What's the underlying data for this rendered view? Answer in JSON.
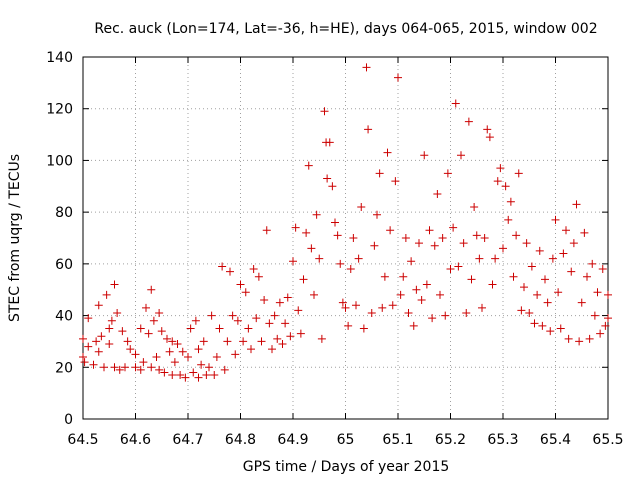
{
  "chart_data": {
    "type": "scatter",
    "title": "Rec. auck (Lon=174, Lat=-36, h=HE), days 064-065, 2015, window 002",
    "xlabel": "GPS time / Days of year 2015",
    "ylabel": "STEC from uqrg / TECUs",
    "xlim": [
      64.5,
      65.5
    ],
    "ylim": [
      0,
      140
    ],
    "xticks": [
      "64.5",
      "64.6",
      "64.7",
      "64.8",
      "64.9",
      "65",
      "65.1",
      "65.2",
      "65.3",
      "65.4",
      "65.5"
    ],
    "yticks": [
      "0",
      "20",
      "40",
      "60",
      "80",
      "100",
      "120",
      "140"
    ],
    "grid": true,
    "marker": "+",
    "color": "#cc0000",
    "series": [
      {
        "name": "STEC",
        "points": [
          [
            64.5,
            31
          ],
          [
            64.5,
            24
          ],
          [
            64.503,
            22
          ],
          [
            64.51,
            28
          ],
          [
            64.51,
            39
          ],
          [
            64.52,
            21
          ],
          [
            64.525,
            30
          ],
          [
            64.53,
            26
          ],
          [
            64.53,
            44
          ],
          [
            64.535,
            32
          ],
          [
            64.54,
            20
          ],
          [
            64.545,
            48
          ],
          [
            64.55,
            29
          ],
          [
            64.55,
            35
          ],
          [
            64.555,
            38
          ],
          [
            64.56,
            52
          ],
          [
            64.56,
            20
          ],
          [
            64.565,
            41
          ],
          [
            64.57,
            19
          ],
          [
            64.575,
            34
          ],
          [
            64.58,
            20
          ],
          [
            64.585,
            30
          ],
          [
            64.59,
            27
          ],
          [
            64.6,
            20
          ],
          [
            64.6,
            25
          ],
          [
            64.61,
            19
          ],
          [
            64.61,
            35
          ],
          [
            64.615,
            22
          ],
          [
            64.62,
            43
          ],
          [
            64.625,
            33
          ],
          [
            64.63,
            50
          ],
          [
            64.63,
            20
          ],
          [
            64.635,
            38
          ],
          [
            64.64,
            24
          ],
          [
            64.645,
            19
          ],
          [
            64.645,
            41
          ],
          [
            64.65,
            34
          ],
          [
            64.655,
            18
          ],
          [
            64.66,
            31
          ],
          [
            64.665,
            26
          ],
          [
            64.67,
            17
          ],
          [
            64.67,
            30
          ],
          [
            64.675,
            22
          ],
          [
            64.68,
            29
          ],
          [
            64.685,
            17
          ],
          [
            64.69,
            26
          ],
          [
            64.695,
            16
          ],
          [
            64.7,
            24
          ],
          [
            64.705,
            35
          ],
          [
            64.71,
            18
          ],
          [
            64.715,
            38
          ],
          [
            64.72,
            16
          ],
          [
            64.72,
            27
          ],
          [
            64.725,
            21
          ],
          [
            64.73,
            30
          ],
          [
            64.735,
            17
          ],
          [
            64.74,
            20
          ],
          [
            64.745,
            40
          ],
          [
            64.75,
            17
          ],
          [
            64.755,
            24
          ],
          [
            64.76,
            35
          ],
          [
            64.765,
            59
          ],
          [
            64.77,
            19
          ],
          [
            64.775,
            30
          ],
          [
            64.78,
            57
          ],
          [
            64.785,
            40
          ],
          [
            64.79,
            25
          ],
          [
            64.795,
            38
          ],
          [
            64.8,
            52
          ],
          [
            64.805,
            30
          ],
          [
            64.81,
            49
          ],
          [
            64.815,
            35
          ],
          [
            64.82,
            27
          ],
          [
            64.825,
            58
          ],
          [
            64.83,
            39
          ],
          [
            64.835,
            55
          ],
          [
            64.84,
            30
          ],
          [
            64.845,
            46
          ],
          [
            64.85,
            73
          ],
          [
            64.855,
            37
          ],
          [
            64.86,
            27
          ],
          [
            64.865,
            40
          ],
          [
            64.87,
            31
          ],
          [
            64.875,
            45
          ],
          [
            64.88,
            29
          ],
          [
            64.885,
            37
          ],
          [
            64.89,
            47
          ],
          [
            64.895,
            32
          ],
          [
            64.9,
            61
          ],
          [
            64.905,
            74
          ],
          [
            64.91,
            42
          ],
          [
            64.915,
            33
          ],
          [
            64.92,
            54
          ],
          [
            64.925,
            72
          ],
          [
            64.93,
            98
          ],
          [
            64.935,
            66
          ],
          [
            64.94,
            48
          ],
          [
            64.945,
            79
          ],
          [
            64.95,
            62
          ],
          [
            64.955,
            31
          ],
          [
            64.96,
            119
          ],
          [
            64.963,
            107
          ],
          [
            64.965,
            93
          ],
          [
            64.97,
            107
          ],
          [
            64.975,
            90
          ],
          [
            64.98,
            76
          ],
          [
            64.985,
            71
          ],
          [
            64.99,
            60
          ],
          [
            64.995,
            45
          ],
          [
            65,
            43
          ],
          [
            65.005,
            36
          ],
          [
            65.01,
            58
          ],
          [
            65.015,
            70
          ],
          [
            65.02,
            44
          ],
          [
            65.025,
            62
          ],
          [
            65.03,
            82
          ],
          [
            65.035,
            35
          ],
          [
            65.04,
            136
          ],
          [
            65.043,
            112
          ],
          [
            65.05,
            41
          ],
          [
            65.055,
            67
          ],
          [
            65.06,
            79
          ],
          [
            65.065,
            95
          ],
          [
            65.07,
            43
          ],
          [
            65.075,
            55
          ],
          [
            65.08,
            103
          ],
          [
            65.085,
            73
          ],
          [
            65.09,
            44
          ],
          [
            65.095,
            92
          ],
          [
            65.1,
            132
          ],
          [
            65.105,
            48
          ],
          [
            65.11,
            55
          ],
          [
            65.115,
            70
          ],
          [
            65.12,
            41
          ],
          [
            65.125,
            61
          ],
          [
            65.13,
            36
          ],
          [
            65.135,
            50
          ],
          [
            65.14,
            68
          ],
          [
            65.145,
            46
          ],
          [
            65.15,
            102
          ],
          [
            65.155,
            52
          ],
          [
            65.16,
            73
          ],
          [
            65.165,
            39
          ],
          [
            65.17,
            67
          ],
          [
            65.175,
            87
          ],
          [
            65.18,
            48
          ],
          [
            65.185,
            70
          ],
          [
            65.19,
            40
          ],
          [
            65.195,
            95
          ],
          [
            65.2,
            58
          ],
          [
            65.205,
            74
          ],
          [
            65.21,
            122
          ],
          [
            65.215,
            59
          ],
          [
            65.22,
            102
          ],
          [
            65.225,
            68
          ],
          [
            65.23,
            41
          ],
          [
            65.235,
            115
          ],
          [
            65.24,
            54
          ],
          [
            65.245,
            82
          ],
          [
            65.25,
            71
          ],
          [
            65.255,
            62
          ],
          [
            65.26,
            43
          ],
          [
            65.265,
            70
          ],
          [
            65.27,
            112
          ],
          [
            65.275,
            109
          ],
          [
            65.28,
            52
          ],
          [
            65.285,
            62
          ],
          [
            65.29,
            92
          ],
          [
            65.295,
            97
          ],
          [
            65.3,
            66
          ],
          [
            65.305,
            90
          ],
          [
            65.31,
            77
          ],
          [
            65.315,
            84
          ],
          [
            65.32,
            55
          ],
          [
            65.325,
            71
          ],
          [
            65.33,
            95
          ],
          [
            65.335,
            42
          ],
          [
            65.34,
            51
          ],
          [
            65.345,
            68
          ],
          [
            65.35,
            41
          ],
          [
            65.355,
            59
          ],
          [
            65.36,
            37
          ],
          [
            65.365,
            48
          ],
          [
            65.37,
            65
          ],
          [
            65.375,
            36
          ],
          [
            65.38,
            54
          ],
          [
            65.385,
            45
          ],
          [
            65.39,
            34
          ],
          [
            65.395,
            62
          ],
          [
            65.4,
            77
          ],
          [
            65.405,
            49
          ],
          [
            65.41,
            35
          ],
          [
            65.415,
            64
          ],
          [
            65.42,
            73
          ],
          [
            65.425,
            31
          ],
          [
            65.43,
            57
          ],
          [
            65.435,
            68
          ],
          [
            65.44,
            83
          ],
          [
            65.445,
            30
          ],
          [
            65.45,
            45
          ],
          [
            65.455,
            72
          ],
          [
            65.46,
            55
          ],
          [
            65.465,
            31
          ],
          [
            65.47,
            60
          ],
          [
            65.475,
            40
          ],
          [
            65.48,
            49
          ],
          [
            65.485,
            33
          ],
          [
            65.49,
            58
          ],
          [
            65.495,
            36
          ],
          [
            65.5,
            48
          ],
          [
            65.5,
            39
          ]
        ]
      }
    ]
  }
}
